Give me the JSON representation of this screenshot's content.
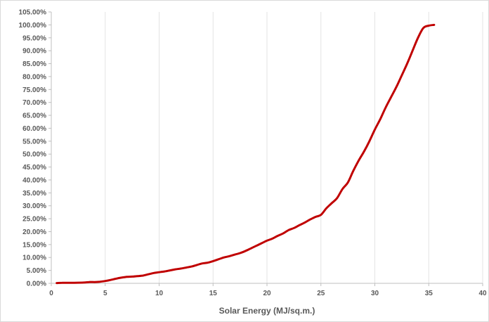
{
  "chart_data": {
    "type": "line",
    "title": "",
    "xlabel": "Solar Energy (MJ/sq.m.)",
    "ylabel": "",
    "xlim": [
      0,
      40
    ],
    "ylim": [
      0,
      105
    ],
    "x_ticks": [
      0,
      5,
      10,
      15,
      20,
      25,
      30,
      35,
      40
    ],
    "x_tick_labels": [
      "0",
      "5",
      "10",
      "15",
      "20",
      "25",
      "30",
      "35",
      "40"
    ],
    "y_ticks": [
      0,
      5,
      10,
      15,
      20,
      25,
      30,
      35,
      40,
      45,
      50,
      55,
      60,
      65,
      70,
      75,
      80,
      85,
      90,
      95,
      100,
      105
    ],
    "y_tick_labels": [
      "0.00%",
      "5.00%",
      "10.00%",
      "15.00%",
      "20.00%",
      "25.00%",
      "30.00%",
      "35.00%",
      "40.00%",
      "45.00%",
      "50.00%",
      "55.00%",
      "60.00%",
      "65.00%",
      "70.00%",
      "75.00%",
      "80.00%",
      "85.00%",
      "90.00%",
      "95.00%",
      "100.00%",
      "105.00%"
    ],
    "grid": "vertical",
    "legend": "none",
    "series": [
      {
        "color": "#c00000",
        "x": [
          0.5,
          1,
          2,
          3,
          3.5,
          4,
          4.5,
          5,
          5.5,
          6,
          6.5,
          7,
          7.5,
          8,
          8.5,
          9,
          9.5,
          10,
          10.5,
          11,
          11.5,
          12,
          12.5,
          13,
          13.5,
          14,
          14.5,
          15,
          15.5,
          16,
          16.5,
          17,
          17.5,
          18,
          18.5,
          19,
          19.5,
          20,
          20.5,
          21,
          21.5,
          22,
          22.5,
          23,
          23.5,
          24,
          24.5,
          25,
          25.5,
          26,
          26.5,
          27,
          27.5,
          28,
          28.5,
          29,
          29.5,
          30,
          30.5,
          31,
          31.5,
          32,
          32.5,
          33,
          33.5,
          34,
          34.5,
          35,
          35.5
        ],
        "values": [
          0.1,
          0.2,
          0.2,
          0.3,
          0.5,
          0.5,
          0.6,
          0.9,
          1.3,
          1.8,
          2.2,
          2.5,
          2.6,
          2.8,
          3.0,
          3.5,
          4.0,
          4.3,
          4.6,
          5.0,
          5.4,
          5.7,
          6.1,
          6.5,
          7.1,
          7.7,
          8.0,
          8.6,
          9.3,
          10.0,
          10.5,
          11.1,
          11.7,
          12.5,
          13.5,
          14.5,
          15.5,
          16.5,
          17.3,
          18.4,
          19.3,
          20.6,
          21.4,
          22.5,
          23.5,
          24.7,
          25.7,
          26.5,
          29.0,
          31.0,
          33.0,
          36.5,
          39.0,
          43.5,
          47.5,
          51.0,
          55.0,
          59.5,
          63.5,
          68.0,
          72.0,
          76.0,
          80.5,
          85.0,
          90.0,
          95.0,
          98.8,
          99.7,
          100.0
        ]
      }
    ]
  }
}
